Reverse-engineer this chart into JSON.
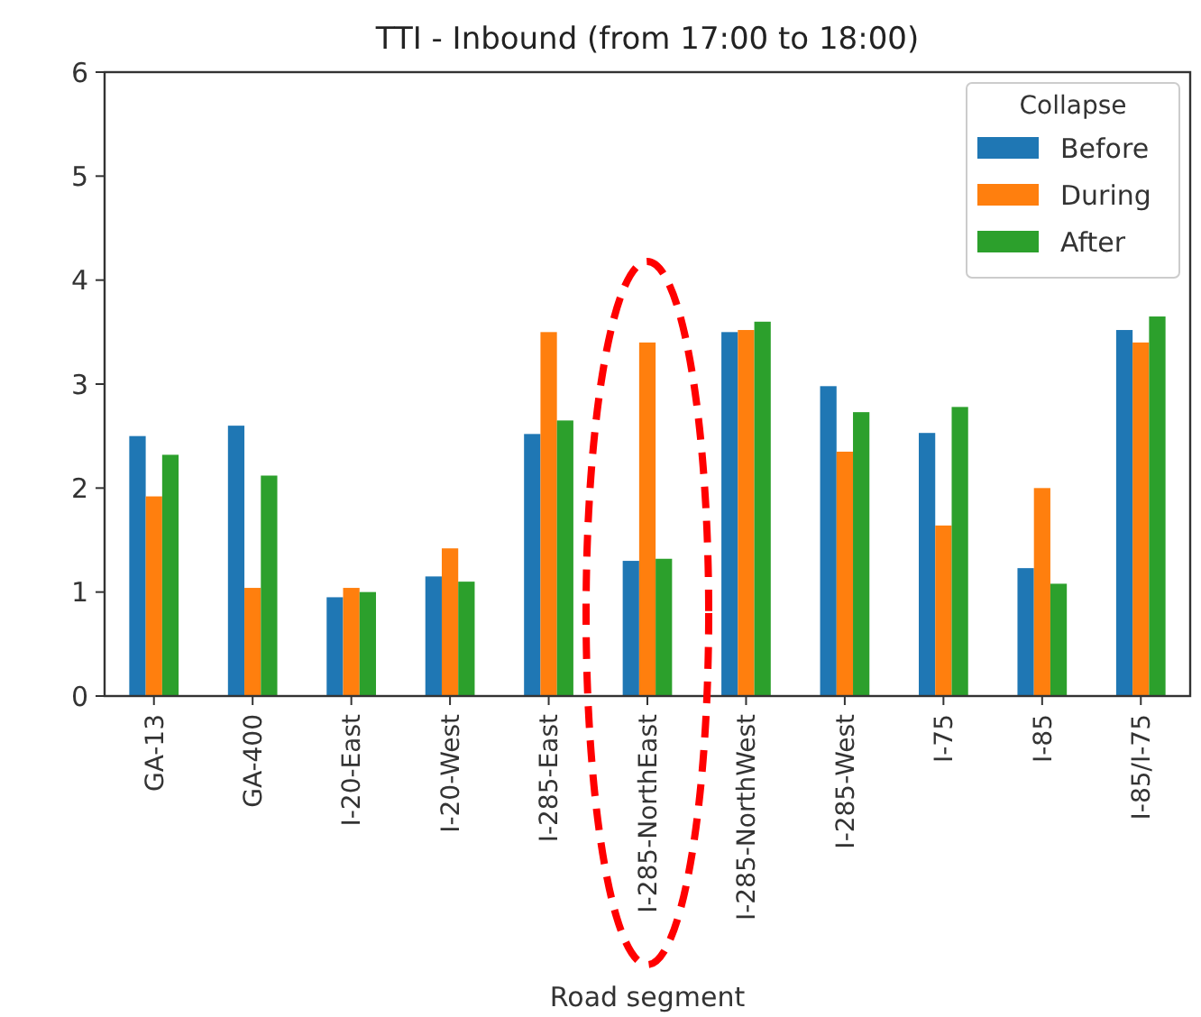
{
  "chart_data": {
    "type": "bar",
    "title": "TTI - Inbound (from 17:00 to 18:00)",
    "xlabel": "Road segment",
    "legend_title": "Collapse",
    "legend": "top right",
    "categories": [
      "GA-13",
      "GA-400",
      "I-20-East",
      "I-20-West",
      "I-285-East",
      "I-285-NorthEast",
      "I-285-NorthWest",
      "I-285-West",
      "I-75",
      "I-85",
      "I-85/I-75"
    ],
    "series": [
      {
        "name": "Before",
        "color": "#1f77b4",
        "values": [
          2.5,
          2.6,
          0.95,
          1.15,
          2.52,
          1.3,
          3.5,
          2.98,
          2.53,
          1.23,
          3.52
        ]
      },
      {
        "name": "During",
        "color": "#ff7f0e",
        "values": [
          1.92,
          1.04,
          1.04,
          1.42,
          3.5,
          3.4,
          3.52,
          2.35,
          1.64,
          2.0,
          3.4
        ]
      },
      {
        "name": "After",
        "color": "#2ca02c",
        "values": [
          2.32,
          2.12,
          1.0,
          1.1,
          2.65,
          1.32,
          3.6,
          2.73,
          2.78,
          1.08,
          3.65
        ]
      }
    ],
    "ylim": [
      0,
      6
    ],
    "yticks": [
      0,
      1,
      2,
      3,
      4,
      5,
      6
    ]
  }
}
